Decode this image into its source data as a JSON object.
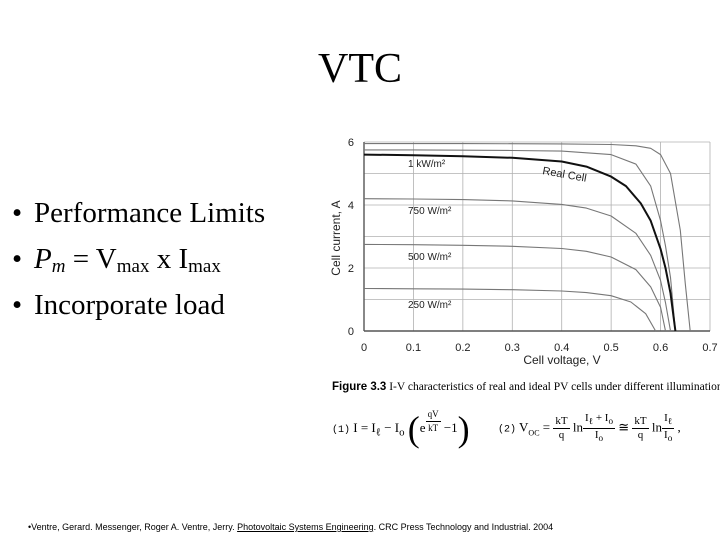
{
  "slide": {
    "title": "VTC",
    "bullet_symbol": "•",
    "bullets": [
      {
        "text": "Performance Limits"
      },
      {
        "pm": "P",
        "pm_sub": "m",
        "eq": " = V",
        "vsub": "max",
        "x": " x I",
        "isub": "max"
      },
      {
        "text": "Incorporate load"
      }
    ]
  },
  "chart_data": {
    "type": "line",
    "xlabel": "Cell voltage, V",
    "ylabel": "Cell current, A",
    "xlim": [
      0,
      0.7
    ],
    "ylim": [
      0,
      6
    ],
    "x_ticks": [
      "0",
      "0.1",
      "0.2",
      "0.3",
      "0.4",
      "0.5",
      "0.6",
      "0.7"
    ],
    "y_ticks": [
      "0",
      "2",
      "4",
      "6"
    ],
    "grid": true,
    "series": [
      {
        "name": "1 kW/m²",
        "style": "light",
        "x": [
          0,
          0.1,
          0.2,
          0.3,
          0.4,
          0.5,
          0.55,
          0.58,
          0.6,
          0.61,
          0.62,
          0.63
        ],
        "y": [
          5.75,
          5.75,
          5.74,
          5.73,
          5.71,
          5.6,
          5.3,
          4.6,
          3.5,
          2.7,
          1.7,
          0
        ]
      },
      {
        "name": "Real Cell",
        "style": "bold",
        "x": [
          0,
          0.1,
          0.2,
          0.3,
          0.4,
          0.45,
          0.5,
          0.53,
          0.56,
          0.58,
          0.6,
          0.61,
          0.62,
          0.63
        ],
        "y": [
          5.6,
          5.58,
          5.55,
          5.5,
          5.38,
          5.22,
          4.9,
          4.6,
          4.05,
          3.5,
          2.6,
          2.0,
          1.2,
          0
        ]
      },
      {
        "name": "ideal",
        "style": "light",
        "x": [
          0,
          0.2,
          0.4,
          0.5,
          0.55,
          0.58,
          0.6,
          0.62,
          0.64,
          0.65,
          0.66
        ],
        "y": [
          5.95,
          5.95,
          5.94,
          5.92,
          5.88,
          5.8,
          5.6,
          5.0,
          3.2,
          1.5,
          0
        ]
      },
      {
        "name": "750 W/m²",
        "style": "light",
        "x": [
          0,
          0.1,
          0.2,
          0.3,
          0.4,
          0.45,
          0.5,
          0.55,
          0.58,
          0.6,
          0.61,
          0.62
        ],
        "y": [
          4.2,
          4.19,
          4.17,
          4.13,
          4.02,
          3.9,
          3.65,
          3.1,
          2.4,
          1.6,
          0.9,
          0
        ]
      },
      {
        "name": "500 W/m²",
        "style": "light",
        "x": [
          0,
          0.1,
          0.2,
          0.3,
          0.4,
          0.45,
          0.5,
          0.55,
          0.58,
          0.6,
          0.61
        ],
        "y": [
          2.75,
          2.74,
          2.72,
          2.69,
          2.62,
          2.53,
          2.35,
          1.95,
          1.4,
          0.75,
          0
        ]
      },
      {
        "name": "250 W/m²",
        "style": "light",
        "x": [
          0,
          0.1,
          0.2,
          0.3,
          0.4,
          0.45,
          0.5,
          0.54,
          0.57,
          0.59
        ],
        "y": [
          1.35,
          1.34,
          1.33,
          1.31,
          1.27,
          1.22,
          1.12,
          0.92,
          0.55,
          0
        ]
      }
    ],
    "labels": [
      "1 kW/m²",
      "Real Cell",
      "750 W/m²",
      "500 W/m²",
      "250 W/m²"
    ],
    "colors": {
      "light": "#777777",
      "bold": "#111111",
      "grid": "#b0b0b0",
      "axis": "#555555"
    }
  },
  "caption": {
    "figure": "Figure 3.3",
    "text": "I-V characteristics of real and ideal PV cells under different illumination leve"
  },
  "equations": {
    "eq1": {
      "number": "(1)",
      "lhs": "I = I",
      "l_sub": "ℓ",
      "minus": " − I",
      "o_sub": "o",
      "e": "e",
      "exp_num": "qV",
      "exp_den": "kT",
      "tail": " −1"
    },
    "eq2": {
      "number": "(2)",
      "lhs": "V",
      "lhs_sub": "OC",
      "eq": " = ",
      "f1_num": "kT",
      "f1_den": "q",
      "ln": " ln",
      "f2_num": "I",
      "f2_num_sub": "ℓ",
      "f2_num_tail": " + I",
      "f2_num_sub2": "o",
      "f2_den": "I",
      "f2_den_sub": "o",
      "approx": " ≅ ",
      "f3_num": "kT",
      "f3_den": "q",
      "ln2": " ln",
      "f4_num": "I",
      "f4_num_sub": "ℓ",
      "f4_den": "I",
      "f4_den_sub": "o",
      "comma": " ,"
    }
  },
  "reference": {
    "prefix": "•Ventre, Gerard.  Messenger, Roger A.  Ventre, Jerry. ",
    "book": "Photovoltaic Systems Engineering",
    "suffix": ". CRC Press Technology and Industrial.  2004"
  }
}
